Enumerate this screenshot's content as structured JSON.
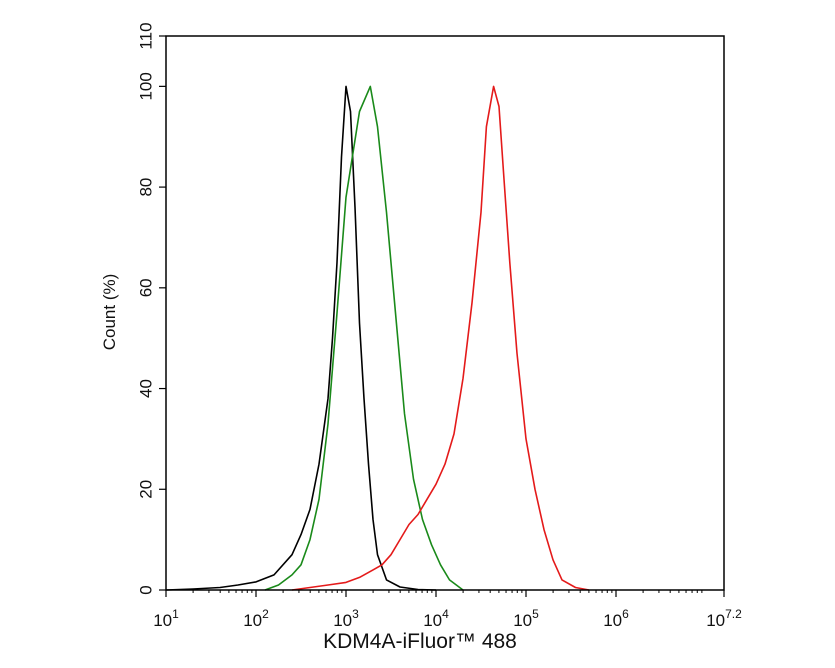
{
  "chart_data": {
    "type": "line",
    "xlabel": "KDM4A-iFluor™ 488",
    "ylabel": "Count  (%)",
    "x_scale": "log10",
    "xlim": [
      1,
      7.2
    ],
    "ylim": [
      0,
      110
    ],
    "x_ticks": [
      {
        "value": 1,
        "base": "10",
        "exp": "1"
      },
      {
        "value": 2,
        "base": "10",
        "exp": "2"
      },
      {
        "value": 3,
        "base": "10",
        "exp": "3"
      },
      {
        "value": 4,
        "base": "10",
        "exp": "4"
      },
      {
        "value": 5,
        "base": "10",
        "exp": "5"
      },
      {
        "value": 6,
        "base": "10",
        "exp": "6"
      },
      {
        "value": 7.2,
        "base": "10",
        "exp": "7.2"
      }
    ],
    "y_ticks": [
      0,
      20,
      40,
      60,
      80,
      100,
      110
    ],
    "grid": false,
    "legend": "none",
    "series": [
      {
        "color": "#000000",
        "points": [
          [
            1.0,
            0
          ],
          [
            1.3,
            0.2
          ],
          [
            1.6,
            0.5
          ],
          [
            1.8,
            1
          ],
          [
            2.0,
            1.6
          ],
          [
            2.2,
            3
          ],
          [
            2.4,
            7
          ],
          [
            2.5,
            11
          ],
          [
            2.6,
            16
          ],
          [
            2.7,
            25
          ],
          [
            2.8,
            38
          ],
          [
            2.85,
            50
          ],
          [
            2.9,
            65
          ],
          [
            2.95,
            86
          ],
          [
            3.0,
            100
          ],
          [
            3.05,
            95
          ],
          [
            3.1,
            76
          ],
          [
            3.15,
            53
          ],
          [
            3.2,
            38
          ],
          [
            3.25,
            25
          ],
          [
            3.3,
            14
          ],
          [
            3.35,
            7
          ],
          [
            3.45,
            2
          ],
          [
            3.6,
            0.6
          ],
          [
            3.8,
            0.1
          ],
          [
            4.0,
            0
          ]
        ]
      },
      {
        "color": "#1a8a1a",
        "points": [
          [
            2.1,
            0
          ],
          [
            2.25,
            1
          ],
          [
            2.4,
            3
          ],
          [
            2.5,
            5
          ],
          [
            2.6,
            10
          ],
          [
            2.7,
            18
          ],
          [
            2.8,
            33
          ],
          [
            2.9,
            55
          ],
          [
            3.0,
            78
          ],
          [
            3.15,
            95
          ],
          [
            3.27,
            100
          ],
          [
            3.35,
            92
          ],
          [
            3.45,
            75
          ],
          [
            3.55,
            55
          ],
          [
            3.65,
            35
          ],
          [
            3.75,
            22
          ],
          [
            3.85,
            14
          ],
          [
            3.95,
            9
          ],
          [
            4.05,
            5
          ],
          [
            4.15,
            2
          ],
          [
            4.3,
            0
          ]
        ]
      },
      {
        "color": "#e41a1a",
        "points": [
          [
            2.4,
            0
          ],
          [
            2.6,
            0.5
          ],
          [
            2.8,
            1
          ],
          [
            3.0,
            1.5
          ],
          [
            3.15,
            2.5
          ],
          [
            3.3,
            4
          ],
          [
            3.4,
            5
          ],
          [
            3.5,
            7
          ],
          [
            3.6,
            10
          ],
          [
            3.7,
            13
          ],
          [
            3.8,
            15
          ],
          [
            3.9,
            18
          ],
          [
            4.0,
            21
          ],
          [
            4.1,
            25
          ],
          [
            4.2,
            31
          ],
          [
            4.3,
            42
          ],
          [
            4.4,
            57
          ],
          [
            4.5,
            75
          ],
          [
            4.56,
            92
          ],
          [
            4.64,
            100
          ],
          [
            4.7,
            96
          ],
          [
            4.75,
            83
          ],
          [
            4.82,
            65
          ],
          [
            4.9,
            47
          ],
          [
            5.0,
            30
          ],
          [
            5.1,
            20
          ],
          [
            5.2,
            12
          ],
          [
            5.3,
            6
          ],
          [
            5.4,
            2
          ],
          [
            5.55,
            0.5
          ],
          [
            5.7,
            0
          ]
        ]
      }
    ]
  }
}
